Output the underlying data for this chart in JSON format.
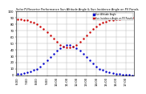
{
  "title": "Solar PV/Inverter Performance Sun Altitude Angle & Sun Incidence Angle on PV Panels",
  "legend_labels": [
    "Sun Altitude Angle",
    "Sun Incidence Angle on PV Panels"
  ],
  "legend_colors": [
    "#0000cc",
    "#cc0000"
  ],
  "blue_x": [
    0,
    1,
    2,
    3,
    4,
    5,
    6,
    7,
    8,
    9,
    10,
    11,
    12,
    13,
    14,
    15,
    16,
    17,
    18,
    19,
    20,
    21,
    22,
    23,
    24,
    25,
    26,
    27,
    28,
    29,
    30,
    31,
    32,
    33,
    34,
    35
  ],
  "blue_y": [
    2,
    2,
    3,
    4,
    6,
    8,
    10,
    14,
    18,
    23,
    28,
    33,
    38,
    42,
    45,
    47,
    47,
    45,
    42,
    38,
    33,
    28,
    23,
    18,
    14,
    10,
    8,
    6,
    4,
    3,
    2,
    2,
    1,
    1,
    1,
    0
  ],
  "red_x": [
    0,
    1,
    2,
    3,
    4,
    5,
    6,
    7,
    8,
    9,
    10,
    11,
    12,
    13,
    14,
    15,
    16,
    17,
    18,
    19,
    20,
    21,
    22,
    23,
    24,
    25,
    26,
    27,
    28,
    29,
    30,
    31,
    32,
    33,
    34,
    35
  ],
  "red_y": [
    88,
    88,
    87,
    86,
    84,
    82,
    80,
    76,
    72,
    67,
    62,
    57,
    52,
    48,
    45,
    43,
    43,
    45,
    48,
    52,
    57,
    62,
    67,
    72,
    76,
    80,
    82,
    84,
    86,
    87,
    88,
    88,
    89,
    89,
    89,
    90
  ],
  "ylim": [
    0,
    100
  ],
  "xlim": [
    -0.5,
    35.5
  ],
  "ytick_vals": [
    0,
    10,
    20,
    30,
    40,
    50,
    60,
    70,
    80,
    90,
    100
  ],
  "ytick_labels": [
    "0",
    "10",
    "20",
    "30",
    "40",
    "50",
    "60",
    "70",
    "80",
    "90",
    "100"
  ],
  "xtick_positions": [
    0,
    3,
    6,
    9,
    12,
    15,
    18,
    21,
    24,
    27,
    30,
    33
  ],
  "xtick_labels": [
    "6:00",
    "7:00",
    "8:00",
    "9:00",
    "10:00",
    "11:00",
    "12:00",
    "13:00",
    "14:00",
    "15:00",
    "16:00",
    "17:00"
  ],
  "background_color": "#ffffff",
  "grid_color": "#b0b0b0",
  "dot_size": 1.5,
  "title_fontsize": 2.5,
  "tick_fontsize": 2.8,
  "legend_fontsize": 2.0
}
